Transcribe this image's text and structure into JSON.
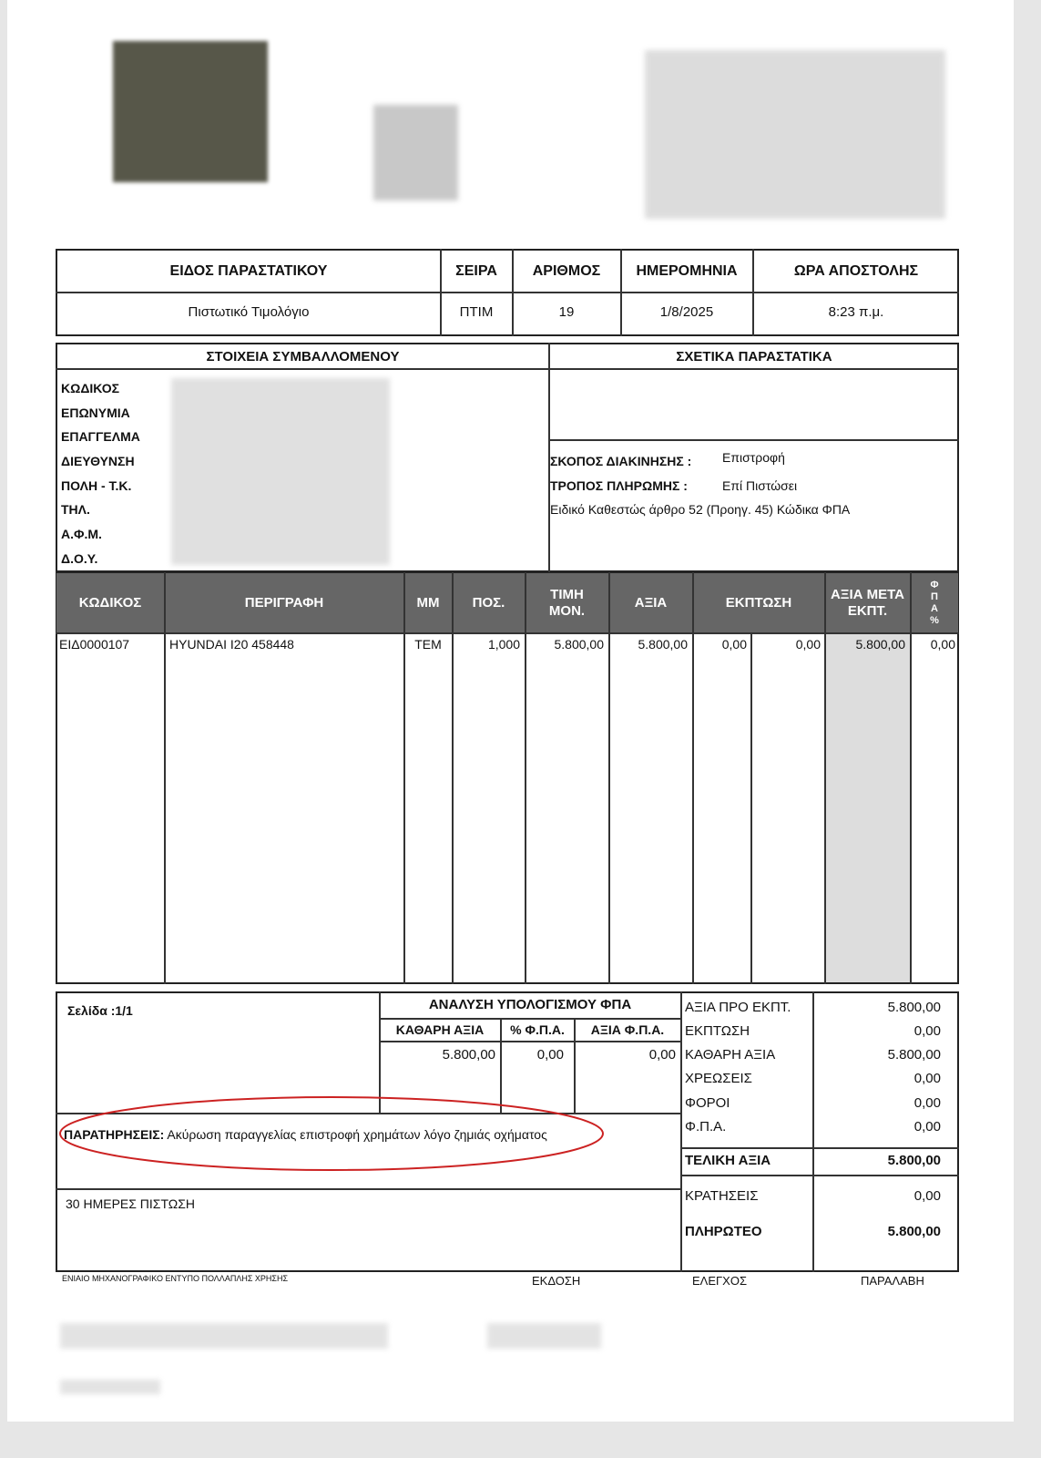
{
  "doc_header": {
    "columns": [
      "ΕΙΔΟΣ ΠΑΡΑΣΤΑΤΙΚΟΥ",
      "ΣΕΙΡΑ",
      "ΑΡΙΘΜΟΣ",
      "ΗΜΕΡΟΜΗΝΙΑ",
      "ΩΡΑ ΑΠΟΣΤΟΛΗΣ"
    ],
    "values": [
      "Πιστωτικό Τιμολόγιο",
      "ΠΤΙΜ",
      "19",
      "1/8/2025",
      "8:23 π.μ."
    ]
  },
  "contractor": {
    "title": "ΣΤΟΙΧΕΙΑ ΣΥΜΒΑΛΛΟΜΕΝΟΥ",
    "fields": [
      "ΚΩΔΙΚΟΣ",
      "ΕΠΩΝΥΜΙΑ",
      "ΕΠΑΓΓΕΛΜΑ",
      "ΔΙΕΥΘΥΝΣΗ",
      "ΠΟΛΗ - Τ.Κ.",
      "ΤΗΛ.",
      "Α.Φ.Μ.",
      "Δ.Ο.Υ."
    ]
  },
  "related": {
    "title": "ΣΧΕΤΙΚΑ ΠΑΡΑΣΤΑΤΙΚΑ",
    "purpose_label": "ΣΚΟΠΟΣ ΔΙΑΚΙΝΗΣΗΣ :",
    "purpose": "Επιστροφή",
    "payment_label": "ΤΡΟΠΟΣ ΠΛΗΡΩΜΗΣ  :",
    "payment": "Επί Πιστώσει",
    "note": "Ειδικό Καθεστώς άρθρο 52 (Προηγ. 45) Κώδικα ΦΠΑ"
  },
  "items": {
    "headers": [
      "ΚΩΔΙΚΟΣ",
      "ΠΕΡΙΓΡΑΦΗ",
      "ΜΜ",
      "ΠΟΣ.",
      "ΤΙΜΗ ΜΟΝ.",
      "ΑΞΙΑ",
      "ΕΚΠΤΩΣΗ",
      "ΑΞΙΑ ΜΕΤΑ ΕΚΠΤ.",
      "Φ Π Α %"
    ],
    "rows": [
      {
        "code": "ΕΙΔ0000107",
        "description": "HYUNDAI I20 458448",
        "unit": "ΤΕΜ",
        "qty": "1,000",
        "price": "5.800,00",
        "value": "5.800,00",
        "disc1": "0,00",
        "disc2": "0,00",
        "net": "5.800,00",
        "vat": "0,00"
      }
    ]
  },
  "footer": {
    "page": "Σελίδα :1/1",
    "vat_title": "ΑΝΑΛΥΣΗ ΥΠΟΛΟΓΙΣΜΟΥ ΦΠΑ",
    "vat_headers": [
      "ΚΑΘΑΡΗ ΑΞΙΑ",
      "% Φ.Π.Α.",
      "ΑΞΙΑ Φ.Π.Α."
    ],
    "vat_values": [
      "5.800,00",
      "0,00",
      "0,00"
    ],
    "remarks_label": "ΠΑΡΑΤΗΡΗΣΕΙΣ:",
    "remarks": " Ακύρωση παραγγελίας επιστροφή χρημάτων λόγο ζημιάς οχήματος",
    "credit": "30 ΗΜΕΡΕΣ ΠΙΣΤΩΣΗ",
    "totals": [
      {
        "label": "ΑΞΙΑ ΠΡΟ ΕΚΠΤ.",
        "value": "5.800,00"
      },
      {
        "label": "ΕΚΠΤΩΣΗ",
        "value": "0,00"
      },
      {
        "label": "ΚΑΘΑΡΗ ΑΞΙΑ",
        "value": "5.800,00"
      },
      {
        "label": "ΧΡΕΩΣΕΙΣ",
        "value": "0,00"
      },
      {
        "label": "ΦΟΡΟΙ",
        "value": "0,00"
      },
      {
        "label": "Φ.Π.Α.",
        "value": "0,00"
      }
    ],
    "final_label": "ΤΕΛΙΚΗ ΑΞΙΑ",
    "final": "5.800,00",
    "withheld_label": "ΚΡΑΤΗΣΕΙΣ",
    "withheld": "0,00",
    "payable_label": "ΠΛΗΡΩΤΕΟ",
    "payable": "5.800,00"
  },
  "bottom": {
    "form": "ΕΝΙΑΙΟ ΜΗΧΑΝΟΓΡΑΦΙΚΟ ΕΝΤΥΠΟ ΠΟΛΛΑΠΛΗΣ ΧΡΗΣΗΣ",
    "issue": "ΕΚΔΟΣΗ",
    "check": "ΕΛΕΓΧΟΣ",
    "receipt": "ΠΑΡΑΛΑΒΗ"
  },
  "colors": {
    "header_bg": "#666666",
    "highlight_col": "#dddddd",
    "annotation": "#cc2222"
  }
}
